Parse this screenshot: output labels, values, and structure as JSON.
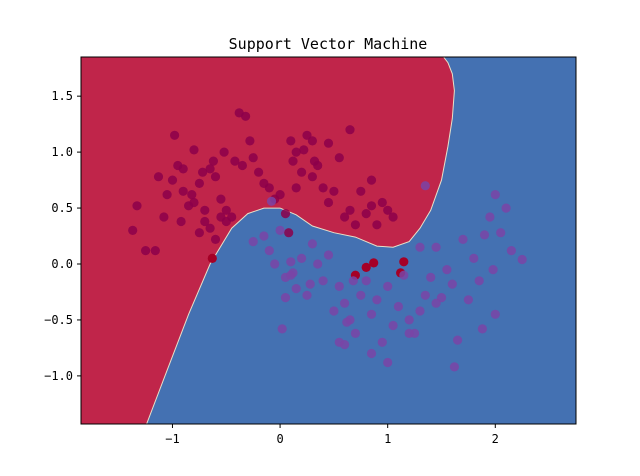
{
  "chart_data": {
    "type": "scatter",
    "title": "Support Vector Machine",
    "xlabel": "",
    "ylabel": "",
    "xlim": [
      -1.85,
      2.75
    ],
    "ylim": [
      -1.43,
      1.85
    ],
    "xticks": [
      -1,
      0,
      1,
      2
    ],
    "xtick_labels": [
      "−1",
      "0",
      "1",
      "2"
    ],
    "yticks": [
      -1.0,
      -0.5,
      0.0,
      0.5,
      1.0,
      1.5
    ],
    "ytick_labels": [
      "−1.0",
      "−0.5",
      "0.0",
      "0.5",
      "1.0",
      "1.5"
    ],
    "grid": false,
    "colors": {
      "region_class_0": "#c0254a",
      "region_class_1": "#4471b2",
      "point_class_0": "#8c004a",
      "point_class_1": "#7a44a6",
      "point_misclassified_0": "#a50026",
      "point_misclassified_1": "#4a5cb4"
    },
    "decision_boundary": {
      "x": [
        -1.24,
        -1.05,
        -0.85,
        -0.65,
        -0.45,
        -0.3,
        -0.15,
        0.0,
        0.15,
        0.3,
        0.5,
        0.7,
        0.9,
        1.05,
        1.2,
        1.3,
        1.4,
        1.5,
        1.56,
        1.6,
        1.62,
        1.6,
        1.56,
        1.52
      ],
      "y": [
        -1.43,
        -0.95,
        -0.45,
        0.0,
        0.32,
        0.45,
        0.5,
        0.5,
        0.44,
        0.34,
        0.28,
        0.24,
        0.16,
        0.15,
        0.2,
        0.32,
        0.48,
        0.75,
        1.05,
        1.3,
        1.55,
        1.7,
        1.8,
        1.85
      ]
    },
    "series": [
      {
        "class": 0,
        "x": [
          -1.37,
          -1.33,
          -1.25,
          -1.16,
          -1.13,
          -1.08,
          -1.05,
          -1.0,
          -0.98,
          -0.95,
          -0.92,
          -0.9,
          -0.85,
          -0.82,
          -0.8,
          -0.75,
          -0.72,
          -0.7,
          -0.7,
          -0.65,
          -0.62,
          -0.6,
          -0.55,
          -0.52,
          -0.5,
          -0.45,
          -0.42,
          -0.38,
          -0.32,
          -0.28,
          -0.25,
          -0.2,
          -0.15,
          -0.1,
          -0.05,
          0.0,
          0.05,
          0.08,
          0.1,
          0.12,
          0.15,
          0.2,
          0.22,
          0.25,
          0.3,
          0.32,
          0.35,
          0.4,
          0.45,
          0.5,
          0.55,
          0.6,
          0.65,
          0.7,
          0.75,
          0.8,
          0.85,
          0.9,
          1.0,
          1.05,
          -0.5,
          -0.35,
          -0.6,
          -0.75,
          -0.8,
          -0.9,
          -0.55,
          -0.65,
          0.15,
          0.3,
          0.45,
          0.65,
          0.85,
          0.95
        ],
        "y": [
          0.3,
          0.52,
          0.12,
          0.12,
          0.78,
          0.42,
          0.62,
          0.75,
          1.15,
          0.88,
          0.38,
          0.85,
          0.52,
          0.62,
          1.02,
          0.72,
          0.82,
          0.48,
          0.38,
          0.32,
          0.92,
          0.78,
          0.42,
          1.0,
          0.38,
          0.42,
          0.92,
          1.35,
          1.32,
          1.1,
          0.95,
          0.82,
          0.72,
          0.68,
          0.58,
          0.62,
          0.45,
          0.28,
          1.1,
          0.92,
          0.68,
          0.82,
          1.02,
          1.15,
          1.1,
          0.92,
          0.88,
          0.68,
          0.55,
          0.65,
          0.95,
          0.42,
          0.48,
          0.35,
          0.65,
          0.45,
          0.52,
          0.35,
          0.48,
          0.42,
          0.48,
          0.88,
          0.22,
          0.28,
          0.55,
          0.65,
          0.58,
          0.85,
          1.0,
          0.78,
          1.08,
          1.2,
          0.75,
          0.55
        ],
        "misclassified_x": [
          -0.63,
          0.7,
          0.8,
          0.87,
          1.12,
          1.15
        ],
        "misclassified_y": [
          0.05,
          -0.1,
          -0.03,
          0.01,
          -0.08,
          0.02
        ]
      },
      {
        "class": 1,
        "x": [
          -0.25,
          -0.15,
          -0.1,
          -0.05,
          0.0,
          0.05,
          0.1,
          0.15,
          0.2,
          0.25,
          0.3,
          0.35,
          0.4,
          0.45,
          0.5,
          0.55,
          0.6,
          0.65,
          0.7,
          0.75,
          0.8,
          0.85,
          0.9,
          0.95,
          1.0,
          1.05,
          1.1,
          1.15,
          1.2,
          1.25,
          1.3,
          1.35,
          1.4,
          1.45,
          1.5,
          1.55,
          1.6,
          1.65,
          1.7,
          1.75,
          1.8,
          1.85,
          1.9,
          1.95,
          2.0,
          2.05,
          2.1,
          2.15,
          2.25,
          -0.08,
          0.05,
          0.12,
          0.28,
          0.55,
          0.62,
          0.68,
          0.85,
          1.2,
          1.35,
          1.62,
          1.88,
          1.98,
          2.0,
          0.02,
          0.1,
          0.6,
          1.0,
          1.3,
          1.45
        ],
        "y": [
          0.2,
          0.25,
          0.12,
          0.0,
          0.3,
          -0.12,
          0.02,
          -0.22,
          0.05,
          -0.28,
          0.18,
          0.0,
          -0.15,
          0.08,
          -0.42,
          -0.2,
          -0.35,
          -0.5,
          -0.62,
          -0.28,
          -0.15,
          -0.45,
          -0.32,
          -0.7,
          -0.2,
          -0.55,
          -0.38,
          -0.1,
          -0.5,
          -0.62,
          -0.42,
          -0.28,
          -0.12,
          0.15,
          -0.3,
          -0.05,
          -0.18,
          -0.68,
          0.22,
          -0.32,
          0.05,
          -0.15,
          0.26,
          0.42,
          0.62,
          0.28,
          0.5,
          0.12,
          0.04,
          0.56,
          -0.3,
          -0.08,
          -0.18,
          -0.7,
          -0.52,
          -0.15,
          -0.8,
          -0.62,
          0.7,
          -0.92,
          -0.58,
          -0.05,
          -0.45,
          -0.58,
          -0.1,
          -0.72,
          -0.88,
          0.15,
          -0.35
        ]
      }
    ]
  }
}
